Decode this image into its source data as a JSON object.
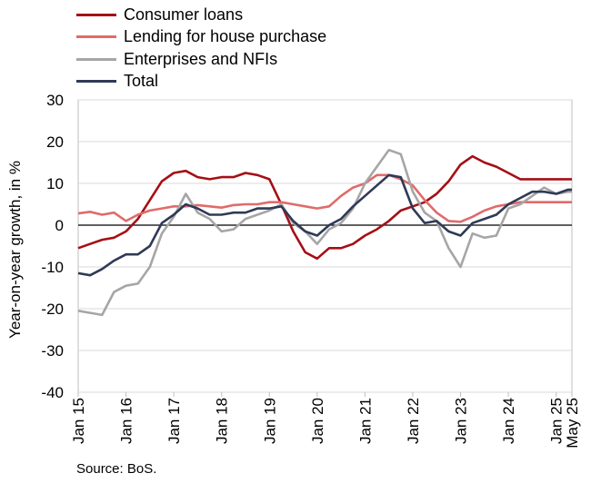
{
  "chart_data": {
    "type": "line",
    "ylabel": "Year-on-year growth, in %",
    "ylim": [
      -40,
      30
    ],
    "yticks": [
      30,
      20,
      10,
      0,
      -10,
      -20,
      -30,
      -40
    ],
    "xticks": [
      "Jan 15",
      "Jan 16",
      "Jan 17",
      "Jan 18",
      "Jan 19",
      "Jan 20",
      "Jan 21",
      "Jan 22",
      "Jan 23",
      "Jan 24",
      "Jan 25",
      "May 25"
    ],
    "grid": "horizontal",
    "legend": "top-left",
    "source": "Source: BoS.",
    "series": [
      {
        "name": "Consumer loans",
        "color": "#a50f15",
        "x": [
          2015.0,
          2015.25,
          2015.5,
          2015.75,
          2016.0,
          2016.25,
          2016.5,
          2016.75,
          2017.0,
          2017.25,
          2017.5,
          2017.75,
          2018.0,
          2018.25,
          2018.5,
          2018.75,
          2019.0,
          2019.25,
          2019.5,
          2019.75,
          2020.0,
          2020.25,
          2020.5,
          2020.75,
          2021.0,
          2021.25,
          2021.5,
          2021.75,
          2022.0,
          2022.25,
          2022.5,
          2022.75,
          2023.0,
          2023.25,
          2023.5,
          2023.75,
          2024.0,
          2024.25,
          2024.5,
          2024.75,
          2025.0,
          2025.25,
          2025.33
        ],
        "y": [
          -5.5,
          -4.5,
          -3.5,
          -3.0,
          -1.5,
          1.5,
          6.0,
          10.5,
          12.5,
          13.0,
          11.5,
          11.0,
          11.5,
          11.5,
          12.5,
          12.0,
          11.0,
          5.0,
          -1.5,
          -6.5,
          -8.0,
          -5.5,
          -5.5,
          -4.5,
          -2.5,
          -1.0,
          1.0,
          3.5,
          4.5,
          5.5,
          7.5,
          10.5,
          14.5,
          16.5,
          15.0,
          14.0,
          12.5,
          11.0,
          11.0,
          11.0,
          11.0,
          11.0,
          11.0
        ]
      },
      {
        "name": "Lending for house purchase",
        "color": "#e06b6b",
        "x": [
          2015.0,
          2015.25,
          2015.5,
          2015.75,
          2016.0,
          2016.25,
          2016.5,
          2016.75,
          2017.0,
          2017.25,
          2017.5,
          2017.75,
          2018.0,
          2018.25,
          2018.5,
          2018.75,
          2019.0,
          2019.25,
          2019.5,
          2019.75,
          2020.0,
          2020.25,
          2020.5,
          2020.75,
          2021.0,
          2021.25,
          2021.5,
          2021.75,
          2022.0,
          2022.25,
          2022.5,
          2022.75,
          2023.0,
          2023.25,
          2023.5,
          2023.75,
          2024.0,
          2024.25,
          2024.5,
          2024.75,
          2025.0,
          2025.25,
          2025.33
        ],
        "y": [
          2.8,
          3.2,
          2.5,
          3.0,
          1.0,
          2.5,
          3.5,
          4.0,
          4.5,
          4.5,
          4.8,
          4.5,
          4.2,
          4.8,
          5.0,
          5.0,
          5.5,
          5.5,
          5.0,
          4.5,
          4.0,
          4.5,
          7.0,
          9.0,
          10.0,
          12.0,
          12.0,
          11.0,
          9.5,
          6.0,
          3.0,
          1.0,
          0.8,
          2.0,
          3.5,
          4.5,
          5.0,
          5.5,
          5.5,
          5.5,
          5.5,
          5.5,
          5.5
        ]
      },
      {
        "name": "Enterprises and NFIs",
        "color": "#a6a6a6",
        "x": [
          2015.0,
          2015.25,
          2015.5,
          2015.75,
          2016.0,
          2016.25,
          2016.5,
          2016.75,
          2017.0,
          2017.25,
          2017.5,
          2017.75,
          2018.0,
          2018.25,
          2018.5,
          2018.75,
          2019.0,
          2019.25,
          2019.5,
          2019.75,
          2020.0,
          2020.25,
          2020.5,
          2020.75,
          2021.0,
          2021.25,
          2021.5,
          2021.75,
          2022.0,
          2022.25,
          2022.5,
          2022.75,
          2023.0,
          2023.25,
          2023.5,
          2023.75,
          2024.0,
          2024.25,
          2024.5,
          2024.75,
          2025.0,
          2025.25,
          2025.33
        ],
        "y": [
          -20.5,
          -21.0,
          -21.5,
          -16.0,
          -14.5,
          -14.0,
          -10.0,
          -2.0,
          2.0,
          7.5,
          3.0,
          1.5,
          -1.5,
          -1.0,
          1.5,
          2.5,
          3.5,
          5.0,
          0.5,
          -1.5,
          -4.5,
          -1.0,
          0.5,
          4.0,
          10.0,
          14.0,
          18.0,
          17.0,
          8.0,
          3.0,
          1.0,
          -5.5,
          -10.0,
          -2.0,
          -3.0,
          -2.5,
          4.0,
          5.0,
          7.0,
          9.0,
          7.5,
          8.0,
          8.0
        ]
      },
      {
        "name": "Total",
        "color": "#2f3a56",
        "x": [
          2015.0,
          2015.25,
          2015.5,
          2015.75,
          2016.0,
          2016.25,
          2016.5,
          2016.75,
          2017.0,
          2017.25,
          2017.5,
          2017.75,
          2018.0,
          2018.25,
          2018.5,
          2018.75,
          2019.0,
          2019.25,
          2019.5,
          2019.75,
          2020.0,
          2020.25,
          2020.5,
          2020.75,
          2021.0,
          2021.25,
          2021.5,
          2021.75,
          2022.0,
          2022.25,
          2022.5,
          2022.75,
          2023.0,
          2023.25,
          2023.5,
          2023.75,
          2024.0,
          2024.25,
          2024.5,
          2024.75,
          2025.0,
          2025.25,
          2025.33
        ],
        "y": [
          -11.5,
          -12.0,
          -10.5,
          -8.5,
          -7.0,
          -7.0,
          -5.0,
          0.5,
          2.5,
          5.0,
          4.0,
          2.5,
          2.5,
          3.0,
          3.0,
          4.0,
          4.0,
          4.5,
          1.0,
          -1.5,
          -2.5,
          0.0,
          1.5,
          4.5,
          7.0,
          9.5,
          12.0,
          11.5,
          4.0,
          0.5,
          1.0,
          -1.5,
          -2.5,
          0.5,
          1.5,
          2.5,
          5.0,
          6.5,
          8.0,
          8.0,
          7.5,
          8.5,
          8.5
        ]
      }
    ]
  }
}
